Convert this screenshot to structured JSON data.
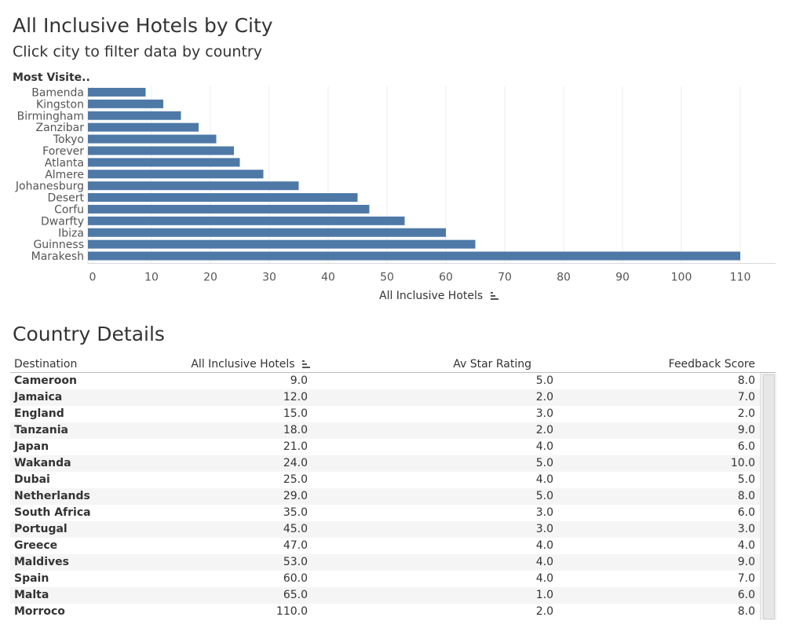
{
  "dashboard": {
    "title": "All Inclusive Hotels by City",
    "subtitle": "Click city to filter data by country"
  },
  "chart_data": {
    "type": "bar",
    "orientation": "horizontal",
    "row_header": "Most Visite..",
    "categories": [
      "Bamenda",
      "Kingston",
      "Birmingham",
      "Zanzibar",
      "Tokyo",
      "Forever",
      "Atlanta",
      "Almere",
      "Johanesburg",
      "Desert",
      "Corfu",
      "Dwarfty",
      "Ibiza",
      "Guinness",
      "Marakesh"
    ],
    "values": [
      9,
      12,
      15,
      18,
      21,
      24,
      25,
      29,
      35,
      45,
      47,
      53,
      60,
      65,
      110
    ],
    "xlabel": "All Inclusive Hotels",
    "xlim": [
      0,
      110
    ],
    "xticks": [
      0,
      10,
      20,
      30,
      40,
      50,
      60,
      70,
      80,
      90,
      100,
      110
    ],
    "bar_color": "#4e79a7",
    "grid": "vertical"
  },
  "details": {
    "title": "Country Details",
    "headers": [
      "Destination",
      "All Inclusive Hotels",
      "Av Star Rating",
      "Feedback Score"
    ],
    "rows": [
      [
        "Cameroon",
        "9.0",
        "5.0",
        "8.0"
      ],
      [
        "Jamaica",
        "12.0",
        "2.0",
        "7.0"
      ],
      [
        "England",
        "15.0",
        "3.0",
        "2.0"
      ],
      [
        "Tanzania",
        "18.0",
        "2.0",
        "9.0"
      ],
      [
        "Japan",
        "21.0",
        "4.0",
        "6.0"
      ],
      [
        "Wakanda",
        "24.0",
        "5.0",
        "10.0"
      ],
      [
        "Dubai",
        "25.0",
        "4.0",
        "5.0"
      ],
      [
        "Netherlands",
        "29.0",
        "5.0",
        "8.0"
      ],
      [
        "South Africa",
        "35.0",
        "3.0",
        "6.0"
      ],
      [
        "Portugal",
        "45.0",
        "3.0",
        "3.0"
      ],
      [
        "Greece",
        "47.0",
        "4.0",
        "4.0"
      ],
      [
        "Maldives",
        "53.0",
        "4.0",
        "9.0"
      ],
      [
        "Spain",
        "60.0",
        "4.0",
        "7.0"
      ],
      [
        "Malta",
        "65.0",
        "1.0",
        "6.0"
      ],
      [
        "Morroco",
        "110.0",
        "2.0",
        "8.0"
      ]
    ]
  },
  "icons": {
    "sort": "sort-descending-icon"
  }
}
